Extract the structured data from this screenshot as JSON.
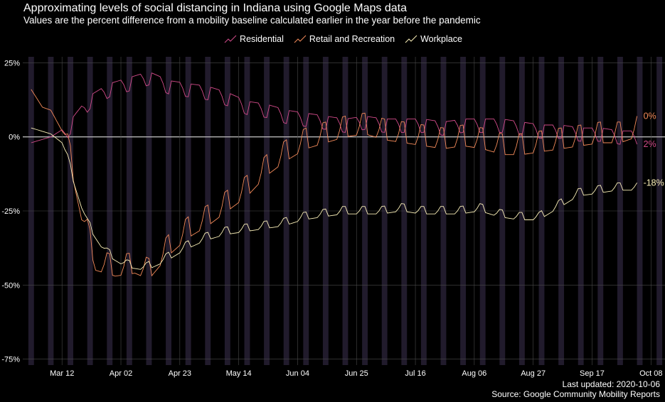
{
  "title": "Approximating levels of social distancing in Indiana using Google Maps data",
  "subtitle": "Values are the percent difference from a mobility baseline calculated earlier in the year before the pandemic",
  "legend": [
    {
      "name": "Residential",
      "color": "#d24b8a"
    },
    {
      "name": "Retail and Recreation",
      "color": "#f38a5a"
    },
    {
      "name": "Workplace",
      "color": "#fbf0b8"
    }
  ],
  "caption": {
    "updated": "Last updated: 2020-10-06",
    "source": "Source: Google Community Mobility Reports"
  },
  "colors": {
    "background": "#000000",
    "weekend_band": "#211b2c",
    "gridline": "#4a4a4a",
    "zero_line": "#b5b5b5"
  },
  "chart_data": {
    "type": "line",
    "x_type": "date",
    "x_range": [
      "2020-02-27",
      "2020-10-13"
    ],
    "ylim": [
      -77,
      27
    ],
    "y_ticks": [
      25,
      0,
      -25,
      -50,
      -75
    ],
    "y_tick_labels": [
      "25%",
      "0%",
      "-25%",
      "-50%",
      "-75%"
    ],
    "x_ticks": [
      "2020-03-12",
      "2020-04-02",
      "2020-04-23",
      "2020-05-14",
      "2020-06-04",
      "2020-06-25",
      "2020-07-16",
      "2020-08-06",
      "2020-08-27",
      "2020-09-17",
      "2020-10-08"
    ],
    "x_tick_labels": [
      "Mar 12",
      "Apr 02",
      "Apr 23",
      "May 14",
      "Jun 04",
      "Jun 25",
      "Jul 16",
      "Aug 06",
      "Aug 27",
      "Sep 17",
      "Oct 08"
    ],
    "grid": true,
    "legend_position": "top",
    "weekend_bands": true,
    "series": [
      {
        "name": "Residential",
        "color": "#d24b8a",
        "end_label": "2%",
        "anchors": [
          [
            "2020-03-01",
            -2
          ],
          [
            "2020-03-08",
            0
          ],
          [
            "2020-03-13",
            3
          ],
          [
            "2020-03-17",
            8
          ],
          [
            "2020-03-22",
            14
          ],
          [
            "2020-03-29",
            18
          ],
          [
            "2020-04-05",
            20
          ],
          [
            "2020-04-12",
            22
          ],
          [
            "2020-04-19",
            19
          ],
          [
            "2020-04-26",
            18
          ],
          [
            "2020-05-03",
            17
          ],
          [
            "2020-05-10",
            15
          ],
          [
            "2020-05-17",
            12
          ],
          [
            "2020-05-24",
            11
          ],
          [
            "2020-05-31",
            9
          ],
          [
            "2020-06-07",
            8
          ],
          [
            "2020-06-14",
            7
          ],
          [
            "2020-06-21",
            6
          ],
          [
            "2020-06-28",
            7
          ],
          [
            "2020-07-05",
            6
          ],
          [
            "2020-07-12",
            6
          ],
          [
            "2020-07-19",
            6
          ],
          [
            "2020-07-26",
            5
          ],
          [
            "2020-08-02",
            6
          ],
          [
            "2020-08-09",
            6
          ],
          [
            "2020-08-16",
            6
          ],
          [
            "2020-08-23",
            5
          ],
          [
            "2020-08-30",
            4
          ],
          [
            "2020-09-06",
            4
          ],
          [
            "2020-09-13",
            3
          ],
          [
            "2020-09-20",
            3
          ],
          [
            "2020-09-27",
            2
          ],
          [
            "2020-10-03",
            2
          ]
        ]
      },
      {
        "name": "Retail and Recreation",
        "color": "#f38a5a",
        "end_label": "0%",
        "anchors": [
          [
            "2020-03-01",
            16
          ],
          [
            "2020-03-05",
            10
          ],
          [
            "2020-03-08",
            9
          ],
          [
            "2020-03-12",
            2
          ],
          [
            "2020-03-15",
            -10
          ],
          [
            "2020-03-19",
            -28
          ],
          [
            "2020-03-24",
            -45
          ],
          [
            "2020-03-31",
            -47
          ],
          [
            "2020-04-07",
            -46
          ],
          [
            "2020-04-12",
            -48
          ],
          [
            "2020-04-19",
            -40
          ],
          [
            "2020-04-26",
            -34
          ],
          [
            "2020-05-03",
            -30
          ],
          [
            "2020-05-10",
            -25
          ],
          [
            "2020-05-17",
            -20
          ],
          [
            "2020-05-24",
            -13
          ],
          [
            "2020-05-31",
            -8
          ],
          [
            "2020-06-07",
            -4
          ],
          [
            "2020-06-14",
            -2
          ],
          [
            "2020-06-21",
            0
          ],
          [
            "2020-06-28",
            1
          ],
          [
            "2020-07-05",
            -1
          ],
          [
            "2020-07-12",
            -2
          ],
          [
            "2020-07-19",
            -3
          ],
          [
            "2020-07-26",
            -4
          ],
          [
            "2020-08-02",
            -3
          ],
          [
            "2020-08-09",
            -4
          ],
          [
            "2020-08-16",
            -6
          ],
          [
            "2020-08-23",
            -6
          ],
          [
            "2020-08-30",
            -5
          ],
          [
            "2020-09-06",
            -4
          ],
          [
            "2020-09-13",
            -3
          ],
          [
            "2020-09-20",
            -2
          ],
          [
            "2020-09-27",
            -2
          ],
          [
            "2020-10-03",
            0
          ]
        ]
      },
      {
        "name": "Workplace",
        "color": "#fbf0b8",
        "end_label": "-18%",
        "anchors": [
          [
            "2020-03-01",
            3
          ],
          [
            "2020-03-08",
            1
          ],
          [
            "2020-03-12",
            -2
          ],
          [
            "2020-03-16",
            -15
          ],
          [
            "2020-03-21",
            -30
          ],
          [
            "2020-03-28",
            -40
          ],
          [
            "2020-04-04",
            -44
          ],
          [
            "2020-04-11",
            -45
          ],
          [
            "2020-04-18",
            -42
          ],
          [
            "2020-04-25",
            -38
          ],
          [
            "2020-05-02",
            -35
          ],
          [
            "2020-05-09",
            -33
          ],
          [
            "2020-05-16",
            -32
          ],
          [
            "2020-05-23",
            -31
          ],
          [
            "2020-05-30",
            -30
          ],
          [
            "2020-06-06",
            -28
          ],
          [
            "2020-06-13",
            -27
          ],
          [
            "2020-06-20",
            -26
          ],
          [
            "2020-06-27",
            -26
          ],
          [
            "2020-07-04",
            -26
          ],
          [
            "2020-07-11",
            -25
          ],
          [
            "2020-07-18",
            -26
          ],
          [
            "2020-07-25",
            -26
          ],
          [
            "2020-08-01",
            -26
          ],
          [
            "2020-08-08",
            -25
          ],
          [
            "2020-08-15",
            -27
          ],
          [
            "2020-08-22",
            -28
          ],
          [
            "2020-08-29",
            -28
          ],
          [
            "2020-09-05",
            -24
          ],
          [
            "2020-09-12",
            -20
          ],
          [
            "2020-09-19",
            -19
          ],
          [
            "2020-09-26",
            -18
          ],
          [
            "2020-10-03",
            -18
          ]
        ]
      }
    ]
  }
}
